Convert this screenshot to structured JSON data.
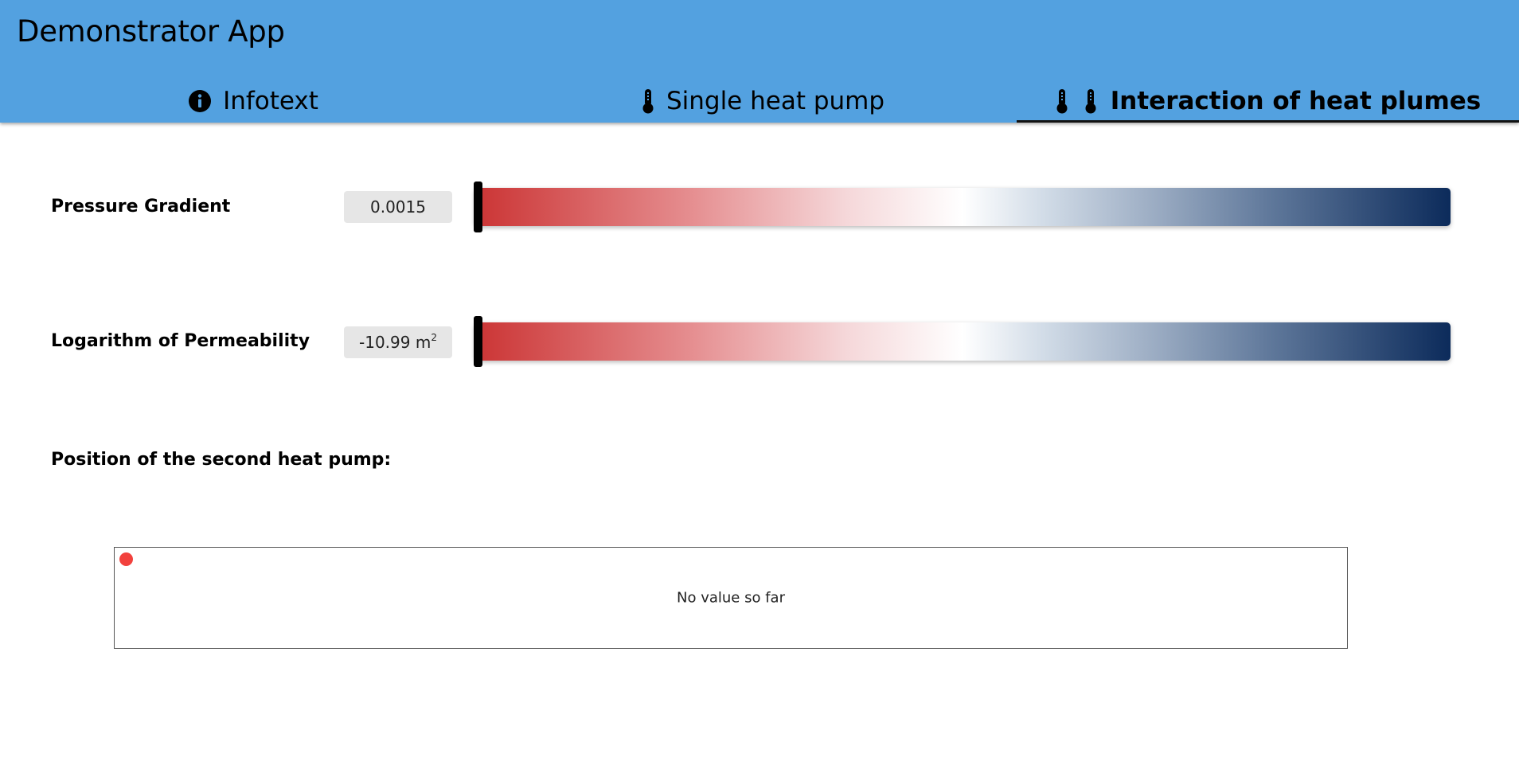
{
  "app": {
    "title": "Demonstrator App",
    "accent_color": "#53a1e0"
  },
  "tabs": [
    {
      "label": "Infotext",
      "icon": "info-icon",
      "active": false
    },
    {
      "label": "Single heat pump",
      "icon": "thermometer-icon",
      "active": false
    },
    {
      "label": "Interaction of heat plumes",
      "icon": "two-thermometers-icon",
      "active": true
    }
  ],
  "parameters": {
    "pressure_gradient": {
      "label": "Pressure Gradient",
      "value": "0.0015",
      "slider_position": 0.0
    },
    "permeability": {
      "label": "Logarithm of Permeability",
      "value": "-10.99 m",
      "unit_exponent": "2",
      "slider_position": 0.0
    }
  },
  "position": {
    "label": "Position of the second heat pump:",
    "placeholder": "No value so far",
    "marker_color": "#f2413d"
  }
}
